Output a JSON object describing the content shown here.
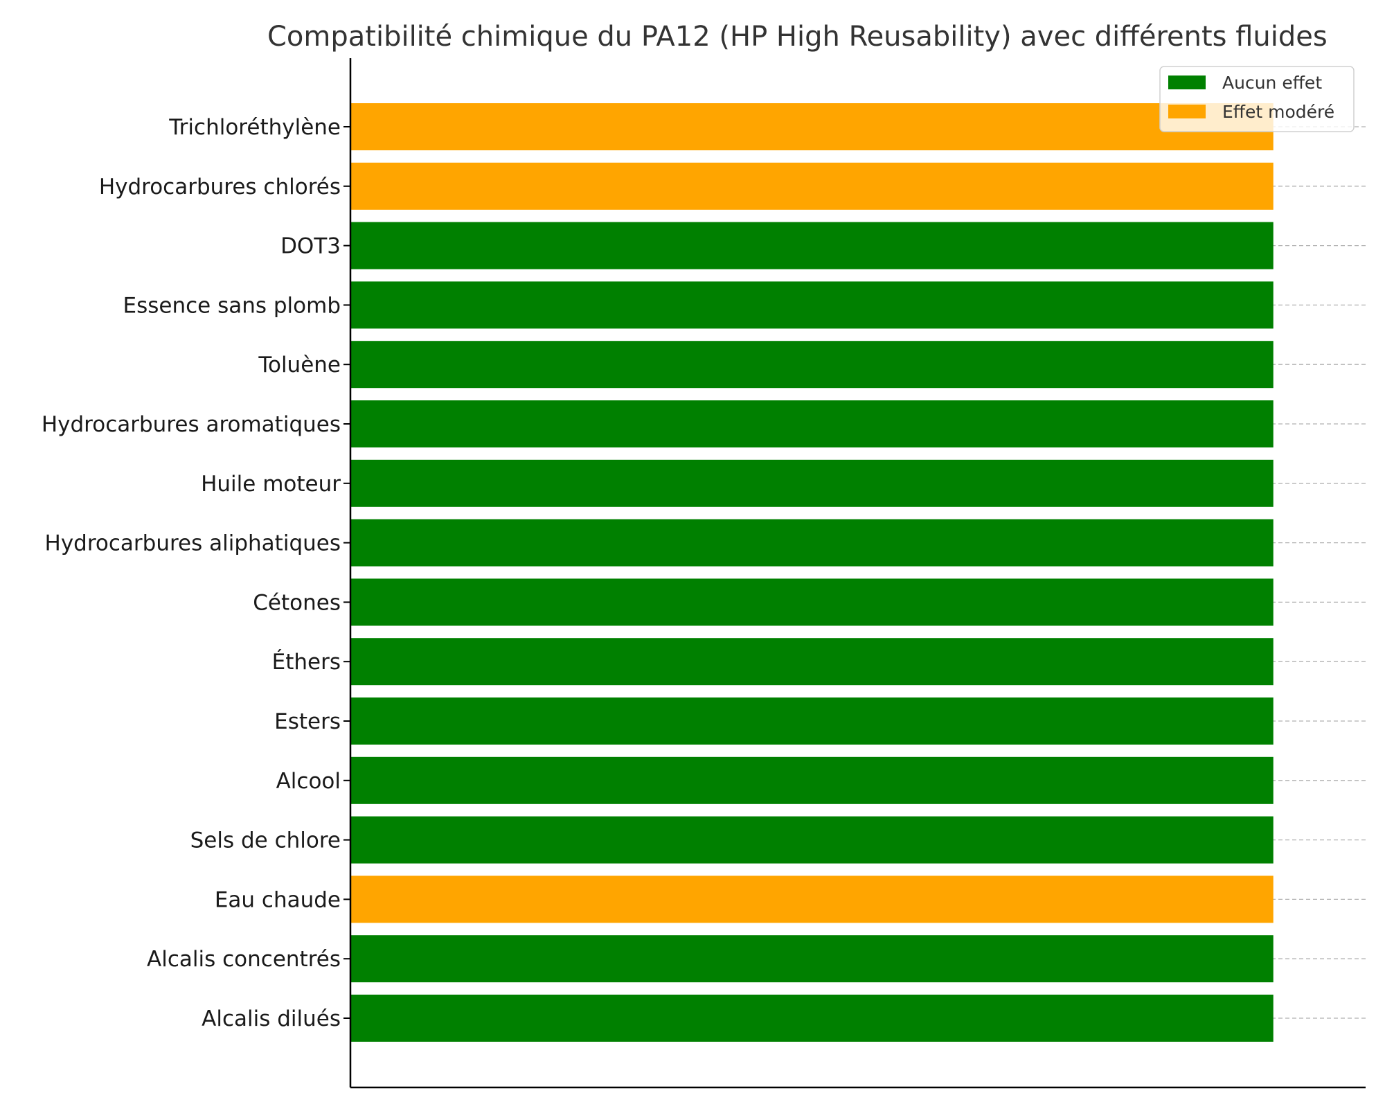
{
  "chart_data": {
    "type": "bar",
    "orientation": "horizontal",
    "title": "Compatibilité chimique du PA12 (HP High Reusability) avec différents fluides",
    "xlabel": "",
    "ylabel": "",
    "categories": [
      "Alcalis dilués",
      "Alcalis concentrés",
      "Eau chaude",
      "Sels de chlore",
      "Alcool",
      "Esters",
      "Éthers",
      "Cétones",
      "Hydrocarbures aliphatiques",
      "Huile moteur",
      "Hydrocarbures aromatiques",
      "Toluène",
      "Essence sans plomb",
      "DOT3",
      "Hydrocarbures chlorés",
      "Trichloréthylène"
    ],
    "values": [
      1,
      1,
      1,
      1,
      1,
      1,
      1,
      1,
      1,
      1,
      1,
      1,
      1,
      1,
      1,
      1
    ],
    "effects": [
      "Aucun effet",
      "Aucun effet",
      "Effet modéré",
      "Aucun effet",
      "Aucun effet",
      "Aucun effet",
      "Aucun effet",
      "Aucun effet",
      "Aucun effet",
      "Aucun effet",
      "Aucun effet",
      "Aucun effet",
      "Aucun effet",
      "Aucun effet",
      "Effet modéré",
      "Effet modéré"
    ],
    "xlim": [
      0,
      1.1
    ],
    "grid": "horizontal dashed",
    "legend_position": "top-right",
    "legend": [
      {
        "label": "Aucun effet",
        "color": "#008000"
      },
      {
        "label": "Effet modéré",
        "color": "#FFA500"
      }
    ],
    "colors": {
      "Aucun effet": "#008000",
      "Effet modéré": "#FFA500",
      "axis": "#000000",
      "grid": "#b0b0b0"
    }
  }
}
